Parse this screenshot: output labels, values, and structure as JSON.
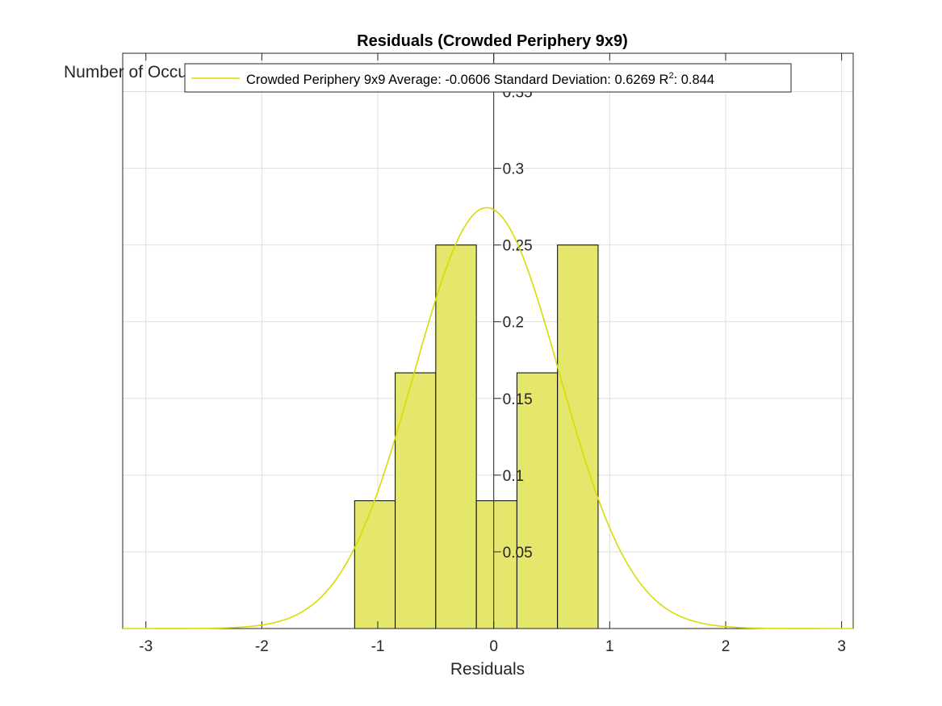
{
  "chart_data": {
    "type": "bar",
    "title": "Residuals (Crowded Periphery 9x9)",
    "xlabel": "Residuals",
    "ylabel": "Number of Occurrences",
    "xlim": [
      -3.2,
      3.1
    ],
    "ylim": [
      0,
      0.375
    ],
    "xticks": [
      -3,
      -2,
      -1,
      0,
      1,
      2,
      3
    ],
    "yticks": [
      0.05,
      0.1,
      0.15,
      0.2,
      0.25,
      0.3,
      0.35
    ],
    "grid": true,
    "bins": {
      "edges": [
        -1.2,
        -0.85,
        -0.5,
        -0.15,
        0.2,
        0.55,
        0.9
      ],
      "values": [
        0.0833,
        0.1667,
        0.25,
        0.0833,
        0.1667,
        0.25
      ]
    },
    "fit": {
      "name": "Crowded Periphery 9x9 Average: -0.0606 Standard Deviation: 0.6269 R",
      "sup": "2",
      "suffix": ": 0.844",
      "mean": -0.0606,
      "std": 0.6269,
      "scale": 0.4311
    },
    "legend_position": "top",
    "colors": {
      "bar_fill": "#e4e76c",
      "bar_edge": "#000000",
      "fit_line": "#d9dc00",
      "grid": "#dedede",
      "axis": "#262626"
    }
  }
}
